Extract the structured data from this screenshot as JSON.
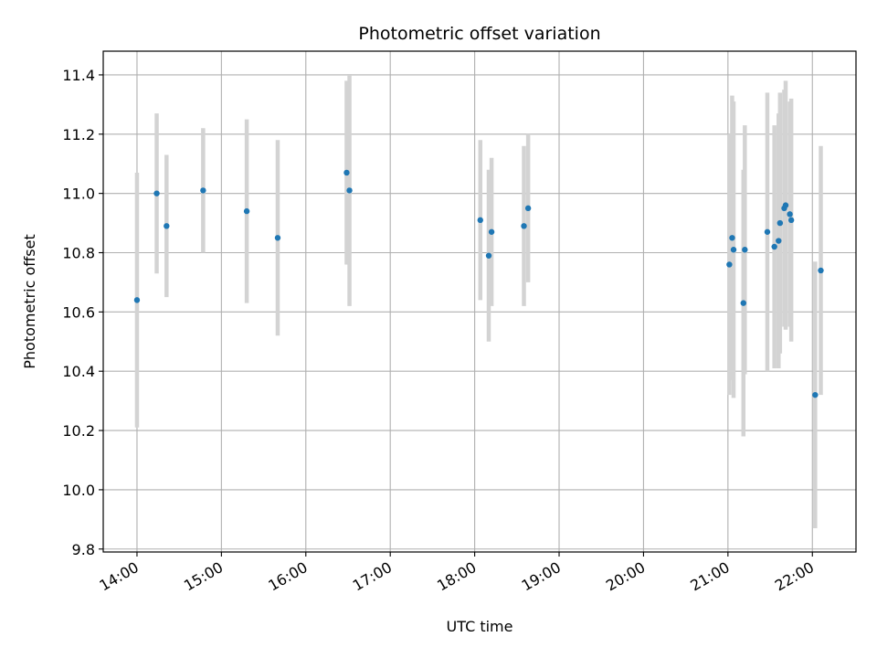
{
  "chart_data": {
    "type": "scatter",
    "title": "Photometric offset variation",
    "xlabel": "UTC time",
    "ylabel": "Photometric offset",
    "x_tick_labels": [
      "14:00",
      "15:00",
      "16:00",
      "17:00",
      "18:00",
      "19:00",
      "20:00",
      "21:00",
      "22:00"
    ],
    "y_tick_labels": [
      "9.8",
      "10.0",
      "10.2",
      "10.4",
      "10.6",
      "10.8",
      "11.0",
      "11.2",
      "11.4"
    ],
    "xlim": [
      "13:36",
      "22:31"
    ],
    "ylim": [
      9.79,
      11.48
    ],
    "grid": true,
    "colors": {
      "points": "#1f77b4",
      "errorbars": "#d3d3d3",
      "grid": "#b0b0b0"
    },
    "points": [
      {
        "x": "14:00",
        "y": 10.64,
        "err": 0.43
      },
      {
        "x": "14:14",
        "y": 11.0,
        "err": 0.27
      },
      {
        "x": "14:21",
        "y": 10.89,
        "err": 0.24
      },
      {
        "x": "14:47",
        "y": 11.01,
        "err": 0.21
      },
      {
        "x": "15:18",
        "y": 10.94,
        "err": 0.31
      },
      {
        "x": "15:40",
        "y": 10.85,
        "err": 0.33
      },
      {
        "x": "16:29",
        "y": 11.07,
        "err": 0.31
      },
      {
        "x": "16:31",
        "y": 11.01,
        "err": 0.39
      },
      {
        "x": "18:04",
        "y": 10.91,
        "err": 0.27
      },
      {
        "x": "18:10",
        "y": 10.79,
        "err": 0.29
      },
      {
        "x": "18:12",
        "y": 10.87,
        "err": 0.25
      },
      {
        "x": "18:35",
        "y": 10.89,
        "err": 0.27
      },
      {
        "x": "18:38",
        "y": 10.95,
        "err": 0.25
      },
      {
        "x": "21:01",
        "y": 10.76,
        "err": 0.44
      },
      {
        "x": "21:03",
        "y": 10.85,
        "err": 0.48
      },
      {
        "x": "21:04",
        "y": 10.81,
        "err": 0.5
      },
      {
        "x": "21:11",
        "y": 10.63,
        "err": 0.45
      },
      {
        "x": "21:12",
        "y": 10.81,
        "err": 0.42
      },
      {
        "x": "21:28",
        "y": 10.87,
        "err": 0.47
      },
      {
        "x": "21:33",
        "y": 10.82,
        "err": 0.41
      },
      {
        "x": "21:36",
        "y": 10.84,
        "err": 0.43
      },
      {
        "x": "21:37",
        "y": 10.9,
        "err": 0.44
      },
      {
        "x": "21:40",
        "y": 10.95,
        "err": 0.4
      },
      {
        "x": "21:41",
        "y": 10.96,
        "err": 0.42
      },
      {
        "x": "21:44",
        "y": 10.93,
        "err": 0.38
      },
      {
        "x": "21:45",
        "y": 10.91,
        "err": 0.41
      },
      {
        "x": "22:02",
        "y": 10.32,
        "err": 0.45
      },
      {
        "x": "22:06",
        "y": 10.74,
        "err": 0.42
      }
    ]
  }
}
